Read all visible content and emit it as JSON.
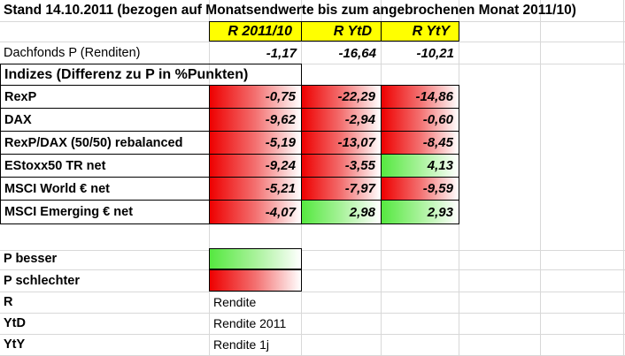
{
  "title": "Stand 14.10.2011 (bezogen auf Monatsendwerte bis zum angebrochenen Monat 2011/10)",
  "headers": [
    "R 2011/10",
    "R YtD",
    "R YtY"
  ],
  "fund": {
    "label": "Dachfonds P (Renditen)",
    "values": [
      "-1,17",
      "-16,64",
      "-10,21"
    ]
  },
  "section_title": "Indizes (Differenz zu P in %Punkten)",
  "indices": [
    {
      "label": "RexP",
      "values": [
        "-0,75",
        "-22,29",
        "-14,86"
      ],
      "status": [
        "worse",
        "worse",
        "worse"
      ]
    },
    {
      "label": "DAX",
      "values": [
        "-9,62",
        "-2,94",
        "-0,60"
      ],
      "status": [
        "worse",
        "worse",
        "worse"
      ]
    },
    {
      "label": "RexP/DAX (50/50) rebalanced",
      "values": [
        "-5,19",
        "-13,07",
        "-8,45"
      ],
      "status": [
        "worse",
        "worse",
        "worse"
      ]
    },
    {
      "label": "EStoxx50 TR net",
      "values": [
        "-9,24",
        "-3,55",
        "4,13"
      ],
      "status": [
        "worse",
        "worse",
        "better"
      ]
    },
    {
      "label": "MSCI World € net",
      "values": [
        "-5,21",
        "-7,97",
        "-9,59"
      ],
      "status": [
        "worse",
        "worse",
        "worse"
      ]
    },
    {
      "label": "MSCI Emerging € net",
      "values": [
        "-4,07",
        "2,98",
        "2,93"
      ],
      "status": [
        "worse",
        "better",
        "better"
      ]
    }
  ],
  "legend": [
    {
      "label": "P besser",
      "swatch": "better"
    },
    {
      "label": "P schlechter",
      "swatch": "worse"
    }
  ],
  "abbreviations": [
    {
      "key": "R",
      "meaning": "Rendite"
    },
    {
      "key": "YtD",
      "meaning": "Rendite 2011"
    },
    {
      "key": "YtY",
      "meaning": "Rendite 1j"
    }
  ],
  "colors": {
    "header": "#ffff00",
    "worse": "#ee0000",
    "better": "#55e840"
  }
}
